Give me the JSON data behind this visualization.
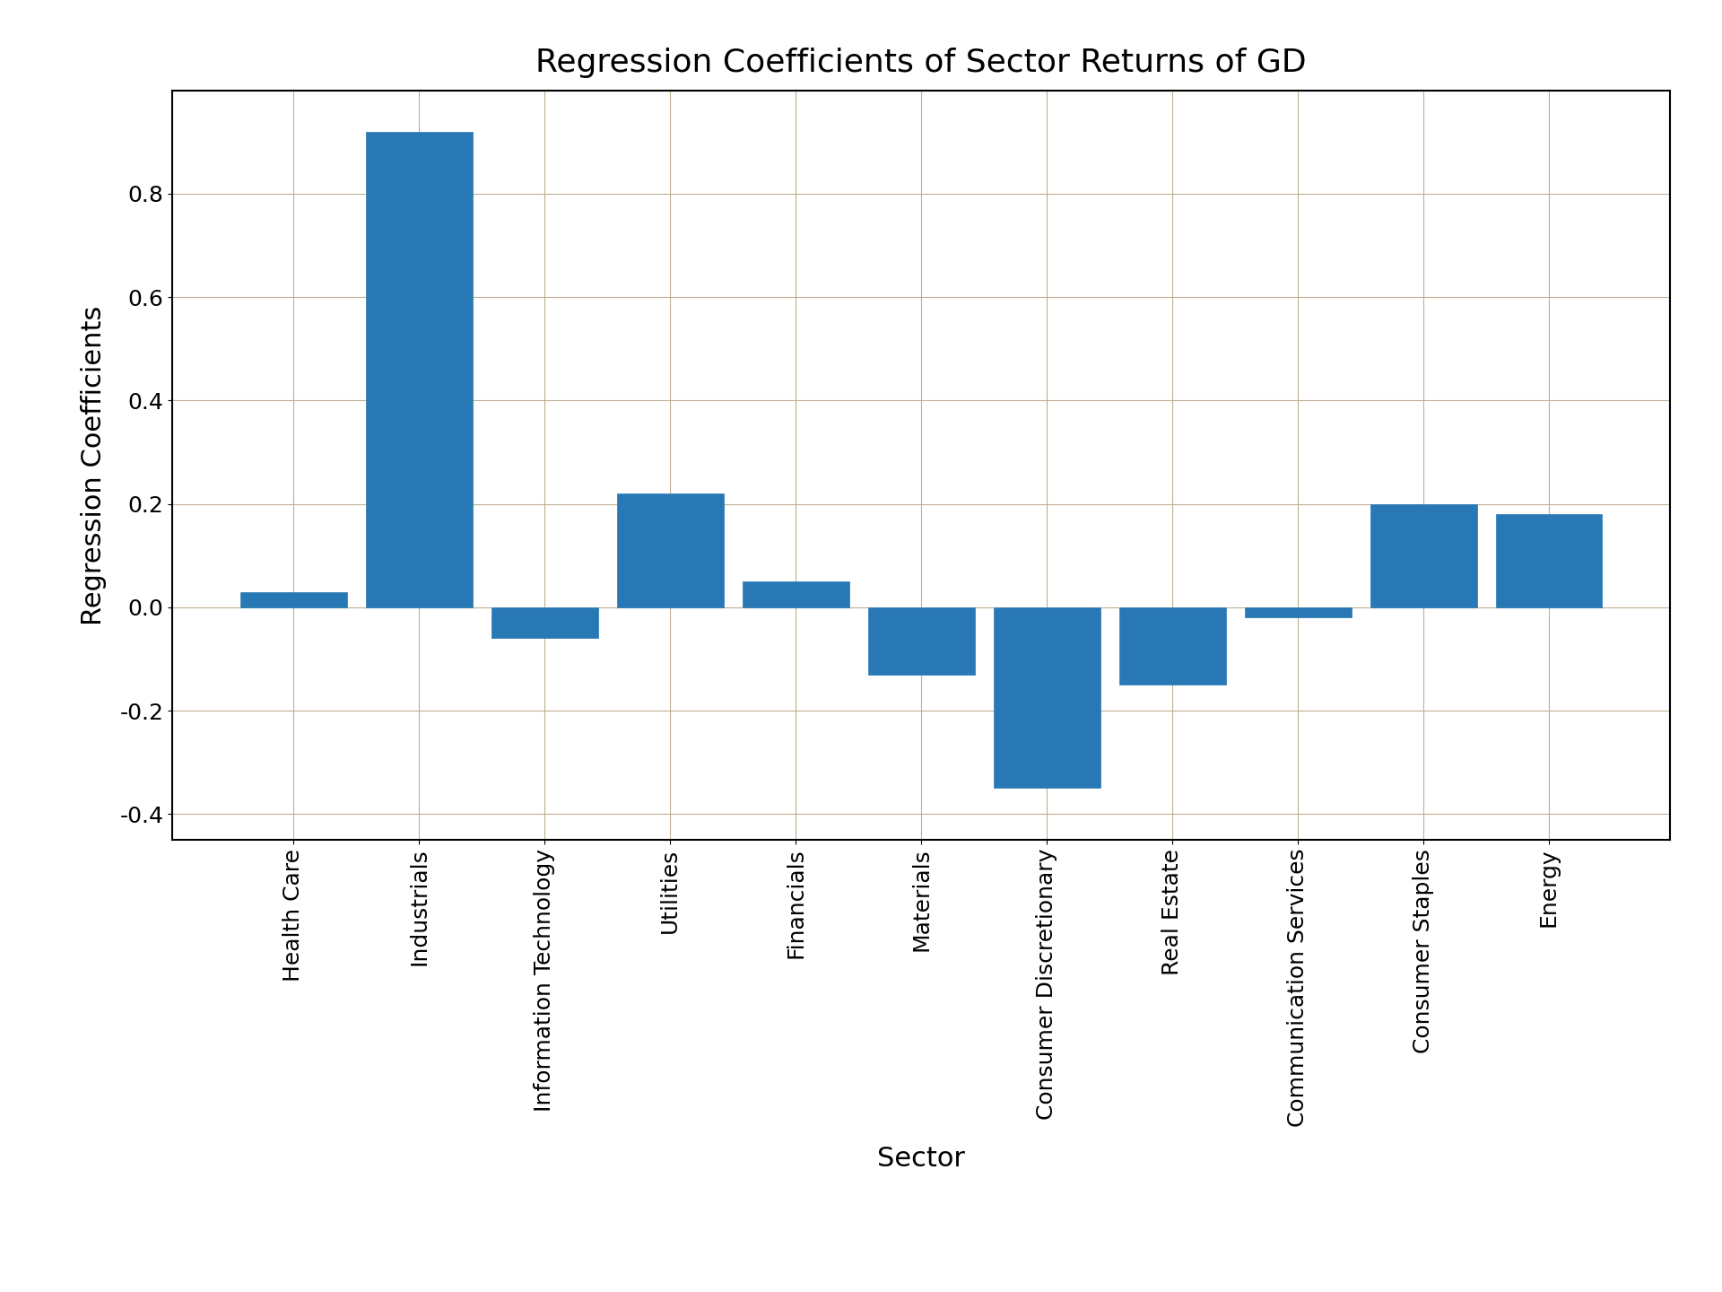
{
  "title": "Regression Coefficients of Sector Returns of GD",
  "xlabel": "Sector",
  "ylabel": "Regression Coefficients",
  "categories": [
    "Health Care",
    "Industrials",
    "Information Technology",
    "Utilities",
    "Financials",
    "Materials",
    "Consumer Discretionary",
    "Real Estate",
    "Communication Services",
    "Consumer Staples",
    "Energy"
  ],
  "values": [
    0.03,
    0.92,
    -0.06,
    0.22,
    0.05,
    -0.13,
    -0.35,
    -0.15,
    -0.02,
    0.2,
    0.18
  ],
  "bar_color": "#2878b5",
  "bar_edgecolor": "#2878b5",
  "ylim": [
    -0.45,
    1.0
  ],
  "yticks": [
    -0.4,
    -0.2,
    0.0,
    0.2,
    0.4,
    0.6,
    0.8
  ],
  "title_fontsize": 26,
  "label_fontsize": 22,
  "tick_fontsize": 18,
  "grid_color": "#c0b090",
  "background_color": "#ffffff",
  "bar_width": 0.85
}
